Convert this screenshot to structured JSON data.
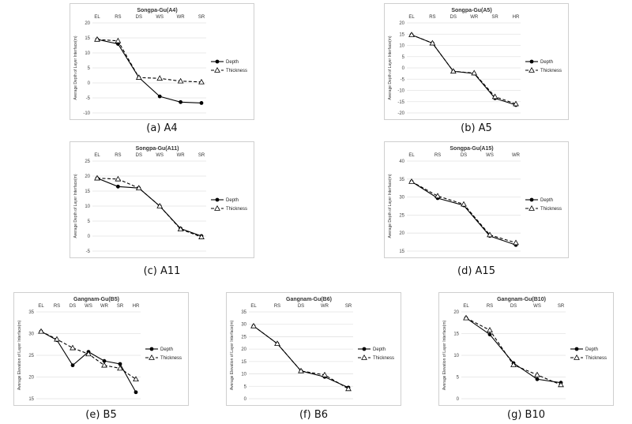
{
  "chart_data": [
    {
      "id": "A4",
      "type": "line",
      "caption": "(a) A4",
      "title": "Songpa-Gu(A4)",
      "ylabel": "Average Depth of Layer Interface(m)",
      "ylim": [
        -10,
        20
      ],
      "yticks": [
        -10,
        -5,
        0,
        5,
        10,
        15,
        20
      ],
      "categories": [
        "EL",
        "RS",
        "DS",
        "WS",
        "WR",
        "SR"
      ],
      "series": [
        {
          "name": "Depth",
          "marker": "circle",
          "dash": false,
          "values": [
            14.5,
            13.0,
            1.8,
            -4.5,
            -6.4,
            -6.7
          ]
        },
        {
          "name": "Thickness",
          "marker": "triangle",
          "dash": true,
          "values": [
            14.5,
            14.0,
            1.8,
            1.5,
            0.6,
            0.3
          ]
        }
      ]
    },
    {
      "id": "A5",
      "type": "line",
      "caption": "(b) A5",
      "title": "Songpa-Gu(A5)",
      "ylabel": "Average Depth of Layer Interface(m)",
      "ylim": [
        -20,
        20
      ],
      "yticks": [
        -20,
        -15,
        -10,
        -5,
        0,
        5,
        10,
        15,
        20
      ],
      "categories": [
        "EL",
        "RS",
        "DS",
        "WR",
        "SR",
        "HR"
      ],
      "series": [
        {
          "name": "Depth",
          "marker": "circle",
          "dash": false,
          "values": [
            14.7,
            11.0,
            -1.5,
            -2.5,
            -13.5,
            -16.5
          ]
        },
        {
          "name": "Thickness",
          "marker": "triangle",
          "dash": true,
          "values": [
            14.7,
            11.0,
            -1.5,
            -2.3,
            -12.8,
            -16.0
          ]
        }
      ]
    },
    {
      "id": "A11",
      "type": "line",
      "caption": "(c) A11",
      "title": "Songpa-Gu(A11)",
      "ylabel": "Average Depth of Layer Interface(m)",
      "ylim": [
        -5,
        25
      ],
      "yticks": [
        -5,
        0,
        5,
        10,
        15,
        20,
        25
      ],
      "categories": [
        "EL",
        "RS",
        "DS",
        "WS",
        "WR",
        "SR"
      ],
      "series": [
        {
          "name": "Depth",
          "marker": "circle",
          "dash": false,
          "values": [
            19.3,
            16.5,
            16.0,
            10.0,
            2.5,
            0.0
          ]
        },
        {
          "name": "Thickness",
          "marker": "triangle",
          "dash": true,
          "values": [
            19.3,
            19.0,
            16.0,
            10.0,
            2.3,
            -0.3
          ]
        }
      ]
    },
    {
      "id": "A15",
      "type": "line",
      "caption": "(d) A15",
      "title": "Songpa-Gu(A15)",
      "ylabel": "Average Depth of Layer Interface(m)",
      "ylim": [
        15,
        40
      ],
      "yticks": [
        15,
        20,
        25,
        30,
        35,
        40
      ],
      "categories": [
        "EL",
        "RS",
        "DS",
        "WS",
        "WR"
      ],
      "series": [
        {
          "name": "Depth",
          "marker": "circle",
          "dash": false,
          "values": [
            34.3,
            29.7,
            27.7,
            19.2,
            16.7
          ]
        },
        {
          "name": "Thickness",
          "marker": "triangle",
          "dash": true,
          "values": [
            34.3,
            30.3,
            28.0,
            19.5,
            17.3
          ]
        }
      ]
    },
    {
      "id": "B5",
      "type": "line",
      "caption": "(e) B5",
      "title": "Gangnam-Gu(B5)",
      "ylabel": "Average Elevation of Layer Interface(m)",
      "ylim": [
        15,
        35
      ],
      "yticks": [
        15,
        20,
        25,
        30,
        35
      ],
      "categories": [
        "EL",
        "RS",
        "DS",
        "WS",
        "WR",
        "SR",
        "HR"
      ],
      "series": [
        {
          "name": "Depth",
          "marker": "circle",
          "dash": false,
          "values": [
            30.5,
            28.5,
            22.7,
            25.8,
            23.7,
            23.0,
            16.5
          ]
        },
        {
          "name": "Thickness",
          "marker": "triangle",
          "dash": true,
          "values": [
            30.5,
            28.7,
            26.7,
            25.3,
            22.7,
            22.0,
            19.5
          ]
        }
      ]
    },
    {
      "id": "B6",
      "type": "line",
      "caption": "(f) B6",
      "title": "Gangnam-Gu(B6)",
      "ylabel": "Average Elevation of Layer Interface(m)",
      "ylim": [
        0,
        35
      ],
      "yticks": [
        0,
        5,
        10,
        15,
        20,
        25,
        30,
        35
      ],
      "categories": [
        "EL",
        "RS",
        "DS",
        "WR",
        "SR"
      ],
      "series": [
        {
          "name": "Depth",
          "marker": "circle",
          "dash": false,
          "values": [
            29.3,
            22.2,
            11.2,
            8.8,
            4.5
          ]
        },
        {
          "name": "Thickness",
          "marker": "triangle",
          "dash": true,
          "values": [
            29.3,
            22.2,
            11.2,
            9.6,
            4.0
          ]
        }
      ]
    },
    {
      "id": "B10",
      "type": "line",
      "caption": "(g) B10",
      "title": "Gangnam-Gu(B10)",
      "ylabel": "Average Elevation of Layer Interface(m)",
      "ylim": [
        0,
        20
      ],
      "yticks": [
        0,
        5,
        10,
        15,
        20
      ],
      "categories": [
        "EL",
        "RS",
        "DS",
        "WS",
        "SR"
      ],
      "series": [
        {
          "name": "Depth",
          "marker": "circle",
          "dash": false,
          "values": [
            18.6,
            14.8,
            8.2,
            4.5,
            3.7
          ]
        },
        {
          "name": "Thickness",
          "marker": "triangle",
          "dash": true,
          "values": [
            18.6,
            15.8,
            7.8,
            5.5,
            3.2
          ]
        }
      ]
    }
  ]
}
